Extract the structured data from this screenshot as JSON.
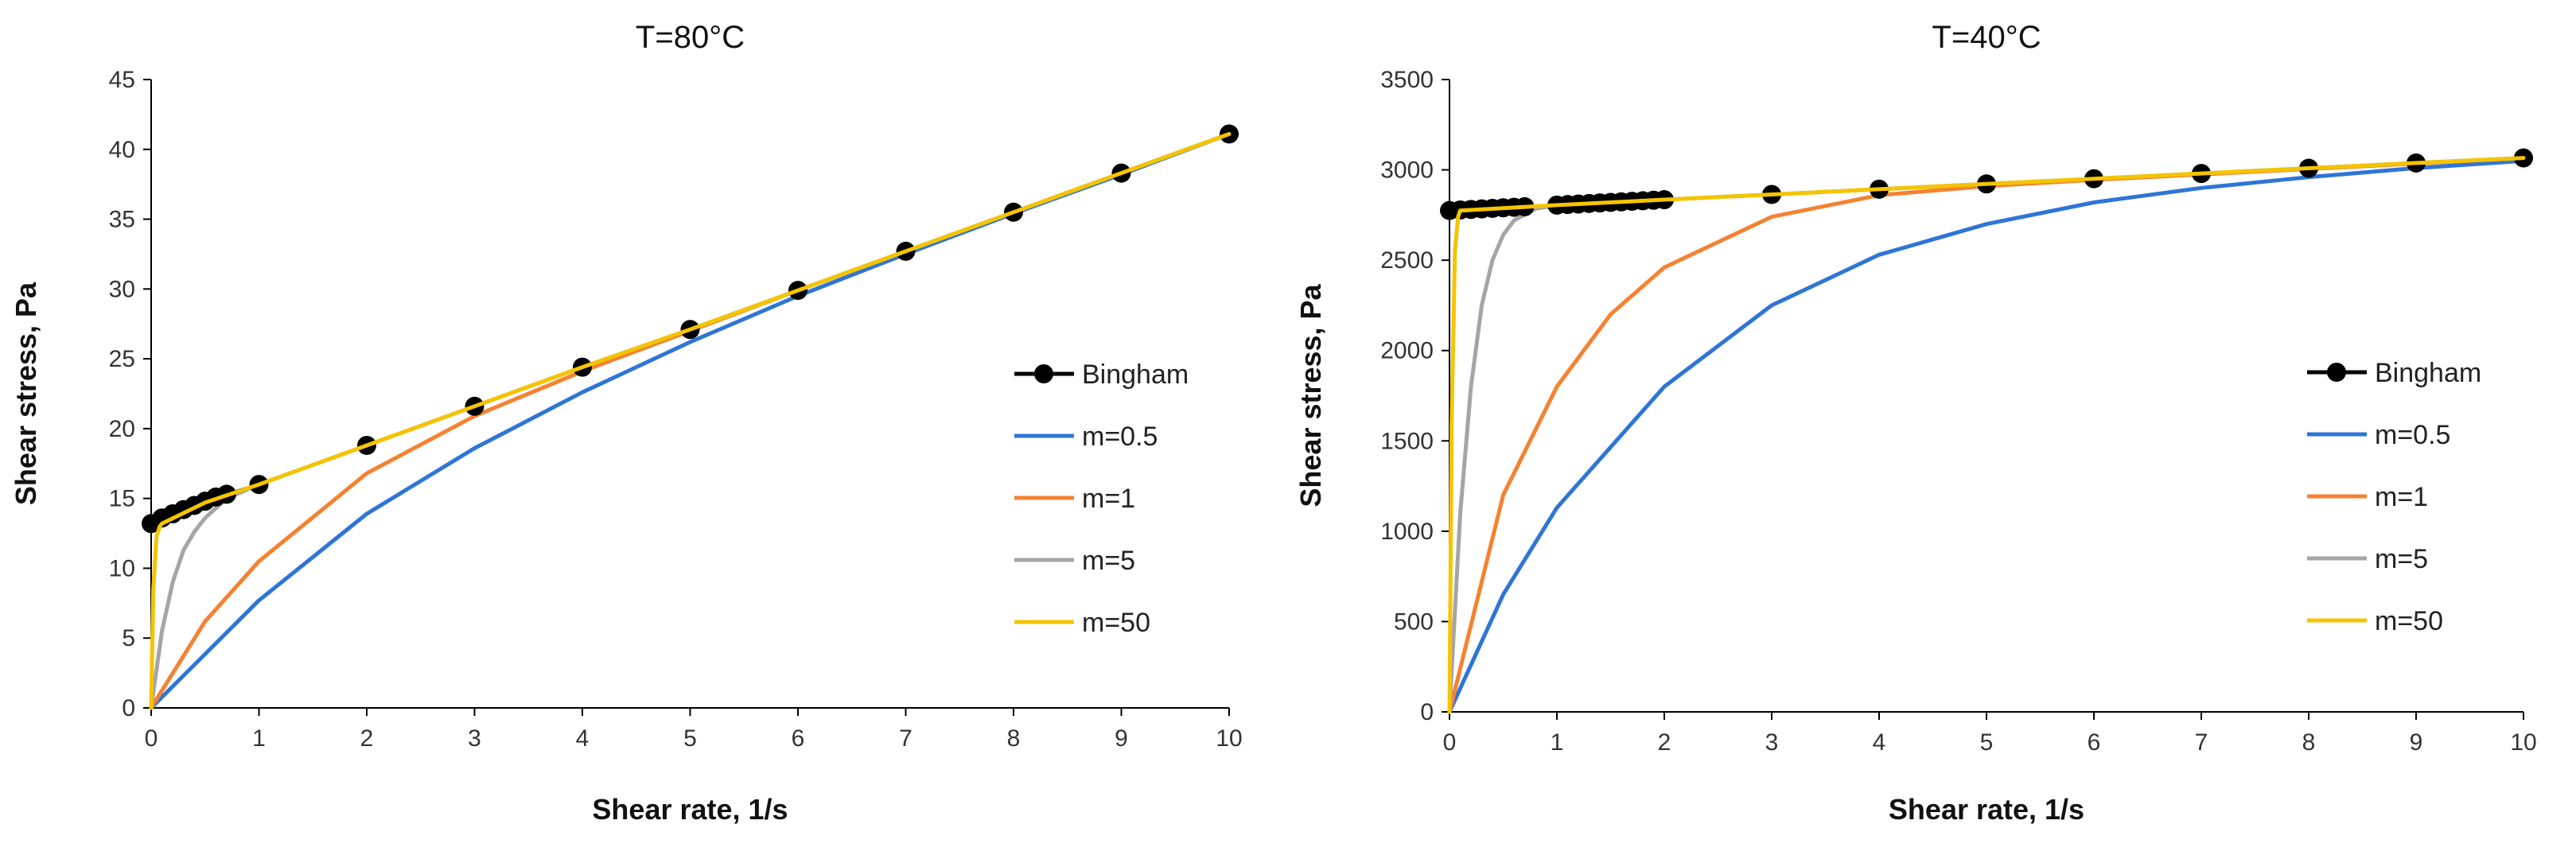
{
  "chart_data": [
    {
      "type": "line",
      "title": "T=80°C",
      "xlabel": "Shear rate, 1/s",
      "ylabel": "Shear stress, Pa",
      "xlim": [
        0,
        10
      ],
      "ylim": [
        0,
        45
      ],
      "xticks": [
        "0",
        "1",
        "2",
        "3",
        "4",
        "5",
        "6",
        "7",
        "8",
        "9",
        "10"
      ],
      "yticks": [
        "0",
        "5",
        "10",
        "15",
        "20",
        "25",
        "30",
        "35",
        "40",
        "45"
      ],
      "legend_position": "right",
      "series": [
        {
          "name": "Bingham",
          "color": "#000000",
          "marker": "circle",
          "x": [
            0,
            0.1,
            0.2,
            0.3,
            0.4,
            0.5,
            0.6,
            0.7,
            1,
            2,
            3,
            4,
            5,
            6,
            7,
            8,
            9,
            10
          ],
          "y": [
            13.2,
            13.6,
            13.9,
            14.2,
            14.5,
            14.8,
            15.1,
            15.3,
            16.0,
            18.8,
            21.6,
            24.4,
            27.1,
            29.9,
            32.7,
            35.5,
            38.3,
            41.1
          ]
        },
        {
          "name": "m=0.5",
          "color": "#2E75D6",
          "x": [
            0,
            1,
            2,
            3,
            4,
            5,
            6,
            7,
            8,
            9,
            10
          ],
          "y": [
            0,
            7.7,
            13.9,
            18.6,
            22.6,
            26.2,
            29.5,
            32.5,
            35.4,
            38.2,
            41.1
          ]
        },
        {
          "name": "m=1",
          "color": "#F58231",
          "x": [
            0,
            0.5,
            1,
            2,
            3,
            4,
            5,
            6,
            7,
            8,
            9,
            10
          ],
          "y": [
            0,
            6.2,
            10.5,
            16.8,
            20.9,
            24.1,
            27.0,
            29.9,
            32.7,
            35.5,
            38.3,
            41.1
          ]
        },
        {
          "name": "m=5",
          "color": "#A5A5A5",
          "x": [
            0,
            0.1,
            0.2,
            0.3,
            0.4,
            0.5,
            0.7,
            1,
            2,
            3,
            4,
            5,
            6,
            7,
            8,
            9,
            10
          ],
          "y": [
            0,
            5.5,
            9.0,
            11.3,
            12.6,
            13.6,
            15.0,
            16.0,
            18.8,
            21.6,
            24.4,
            27.1,
            29.9,
            32.7,
            35.5,
            38.3,
            41.1
          ]
        },
        {
          "name": "m=50",
          "color": "#F5C400",
          "x": [
            0,
            0.02,
            0.05,
            0.08,
            0.1,
            0.5,
            1,
            2,
            3,
            4,
            5,
            6,
            7,
            8,
            9,
            10
          ],
          "y": [
            0,
            8.5,
            12.3,
            13.0,
            13.2,
            14.7,
            16.0,
            18.8,
            21.6,
            24.4,
            27.1,
            29.9,
            32.7,
            35.5,
            38.3,
            41.1
          ]
        }
      ]
    },
    {
      "type": "line",
      "title": "T=40°C",
      "xlabel": "Shear rate, 1/s",
      "ylabel": "Shear stress, Pa",
      "xlim": [
        0,
        10
      ],
      "ylim": [
        0,
        3500
      ],
      "xticks": [
        "0",
        "1",
        "2",
        "3",
        "4",
        "5",
        "6",
        "7",
        "8",
        "9",
        "10"
      ],
      "yticks": [
        "0",
        "500",
        "1000",
        "1500",
        "2000",
        "2500",
        "3000",
        "3500"
      ],
      "legend_position": "right",
      "series": [
        {
          "name": "Bingham",
          "color": "#000000",
          "marker": "circle",
          "x": [
            0,
            0.1,
            0.2,
            0.3,
            0.4,
            0.5,
            0.6,
            0.7,
            1,
            1.1,
            1.2,
            1.3,
            1.4,
            1.5,
            1.6,
            1.7,
            1.8,
            1.9,
            2,
            3,
            4,
            5,
            6,
            7,
            8,
            9,
            10
          ],
          "y": [
            2775,
            2778,
            2781,
            2784,
            2787,
            2790,
            2793,
            2796,
            2805,
            2808,
            2811,
            2814,
            2817,
            2820,
            2823,
            2826,
            2829,
            2832,
            2835,
            2864,
            2893,
            2922,
            2951,
            2980,
            3009,
            3038,
            3066
          ]
        },
        {
          "name": "m=0.5",
          "color": "#2E75D6",
          "x": [
            0,
            0.5,
            1,
            2,
            3,
            4,
            5,
            6,
            7,
            8,
            9,
            10
          ],
          "y": [
            0,
            650,
            1130,
            1800,
            2250,
            2530,
            2700,
            2820,
            2900,
            2960,
            3010,
            3050
          ]
        },
        {
          "name": "m=1",
          "color": "#F58231",
          "x": [
            0,
            0.5,
            1,
            1.5,
            2,
            3,
            4,
            5,
            6,
            7,
            8,
            9,
            10
          ],
          "y": [
            0,
            1200,
            1800,
            2200,
            2460,
            2740,
            2860,
            2910,
            2945,
            2975,
            3005,
            3035,
            3066
          ]
        },
        {
          "name": "m=5",
          "color": "#A5A5A5",
          "x": [
            0,
            0.1,
            0.2,
            0.3,
            0.4,
            0.5,
            0.6,
            0.8,
            1,
            2,
            3,
            4,
            5,
            6,
            7,
            8,
            9,
            10
          ],
          "y": [
            0,
            1100,
            1800,
            2250,
            2500,
            2640,
            2720,
            2785,
            2805,
            2835,
            2864,
            2893,
            2922,
            2951,
            2980,
            3009,
            3038,
            3066
          ]
        },
        {
          "name": "m=50",
          "color": "#F5C400",
          "x": [
            0,
            0.02,
            0.05,
            0.08,
            0.1,
            1,
            2,
            3,
            4,
            5,
            6,
            7,
            8,
            9,
            10
          ],
          "y": [
            0,
            1600,
            2550,
            2740,
            2775,
            2805,
            2835,
            2864,
            2893,
            2922,
            2951,
            2980,
            3009,
            3038,
            3066
          ]
        }
      ]
    }
  ]
}
